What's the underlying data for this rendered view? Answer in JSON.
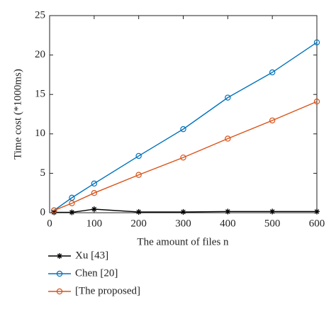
{
  "chart_data": {
    "type": "line",
    "xlabel": "The amount of files n",
    "ylabel": "Time cost (*1000ms)",
    "x": [
      10,
      50,
      100,
      200,
      300,
      400,
      500,
      600
    ],
    "series": [
      {
        "name": "Xu [43]",
        "color": "#000000",
        "marker": "asterisk",
        "values": [
          0.05,
          0.05,
          0.45,
          0.1,
          0.1,
          0.15,
          0.15,
          0.15
        ]
      },
      {
        "name": "Chen [20]",
        "color": "#0072bd",
        "marker": "circle",
        "values": [
          0.3,
          1.9,
          3.7,
          7.2,
          10.6,
          14.6,
          17.8,
          21.6
        ]
      },
      {
        "name": "[The proposed]",
        "color": "#d95319",
        "marker": "circle",
        "values": [
          0.3,
          1.2,
          2.5,
          4.8,
          7.0,
          9.4,
          11.7,
          14.1
        ]
      }
    ],
    "xlim": [
      0,
      600
    ],
    "xticks": [
      0,
      100,
      200,
      300,
      400,
      500,
      600
    ],
    "ylim": [
      0,
      25
    ],
    "yticks": [
      0,
      5,
      10,
      15,
      20,
      25
    ],
    "grid": false,
    "legend": "below"
  }
}
